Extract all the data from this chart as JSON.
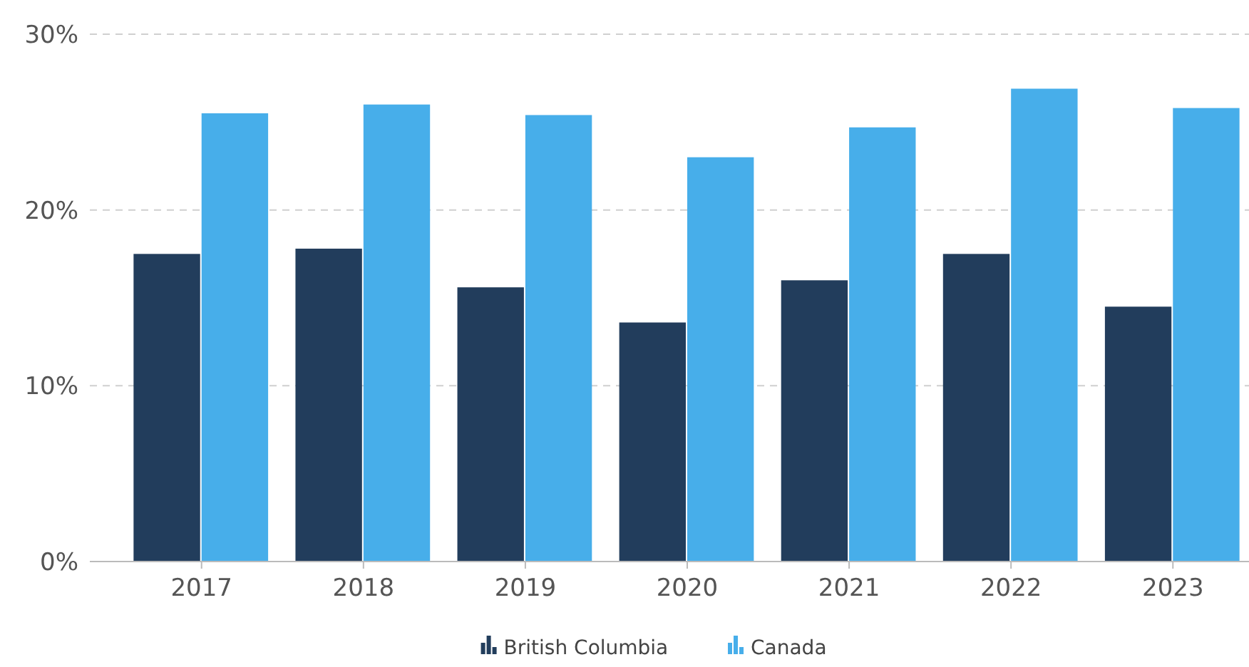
{
  "chart_data": {
    "type": "bar",
    "categories": [
      "2017",
      "2018",
      "2019",
      "2020",
      "2021",
      "2022",
      "2023"
    ],
    "series": [
      {
        "name": "British Columbia",
        "color": "#223d5c",
        "values": [
          17.5,
          17.8,
          15.6,
          13.6,
          16.0,
          17.5,
          14.5
        ]
      },
      {
        "name": "Canada",
        "color": "#47aeea",
        "values": [
          25.5,
          26.0,
          25.4,
          23.0,
          24.7,
          26.9,
          25.8
        ]
      }
    ],
    "ylim": [
      0,
      30
    ],
    "yticks": [
      {
        "value": 0,
        "label": "0%"
      },
      {
        "value": 10,
        "label": "10%"
      },
      {
        "value": 20,
        "label": "20%"
      },
      {
        "value": 30,
        "label": "30%"
      }
    ],
    "grid": "y",
    "legend": "bottom"
  }
}
